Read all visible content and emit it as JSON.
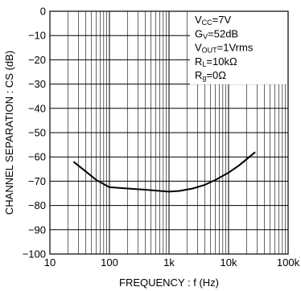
{
  "chart_data": {
    "type": "line",
    "title": "",
    "xlabel": "FREQUENCY : f (Hz)",
    "ylabel": "CHANNEL  SEPARATION : CS (dB)",
    "x_scale": "log",
    "xlim": [
      10,
      100000
    ],
    "ylim": [
      -100,
      0
    ],
    "x_ticks": [
      10,
      100,
      1000,
      10000,
      100000
    ],
    "x_tick_labels": [
      "10",
      "100",
      "1k",
      "10k",
      "100k"
    ],
    "y_ticks": [
      0,
      -10,
      -20,
      -30,
      -40,
      -50,
      -60,
      -70,
      -80,
      -90,
      -100
    ],
    "y_tick_labels": [
      "0",
      "−10",
      "−20",
      "−30",
      "−40",
      "−50",
      "−60",
      "−70",
      "−80",
      "−90",
      "−100"
    ],
    "grid": true,
    "conditions": [
      {
        "main": "V",
        "sub": "CC",
        "rest": "=7V"
      },
      {
        "main": "G",
        "sub": "V",
        "rest": "=52dB"
      },
      {
        "main": "V",
        "sub": "OUT",
        "rest": "=1Vrms"
      },
      {
        "main": "R",
        "sub": "L",
        "rest": "=10kΩ"
      },
      {
        "main": "R",
        "sub": "g",
        "rest": "=0Ω"
      }
    ],
    "series": [
      {
        "x": [
          25,
          40,
          60,
          100,
          200,
          400,
          700,
          1000,
          1500,
          2500,
          4000,
          6000,
          10000,
          15000,
          20000,
          28000
        ],
        "y": [
          -62,
          -66,
          -69.5,
          -72.5,
          -73,
          -73.5,
          -74,
          -74.3,
          -74,
          -73,
          -71.5,
          -69.5,
          -66.5,
          -63.5,
          -61,
          -58
        ]
      }
    ]
  }
}
